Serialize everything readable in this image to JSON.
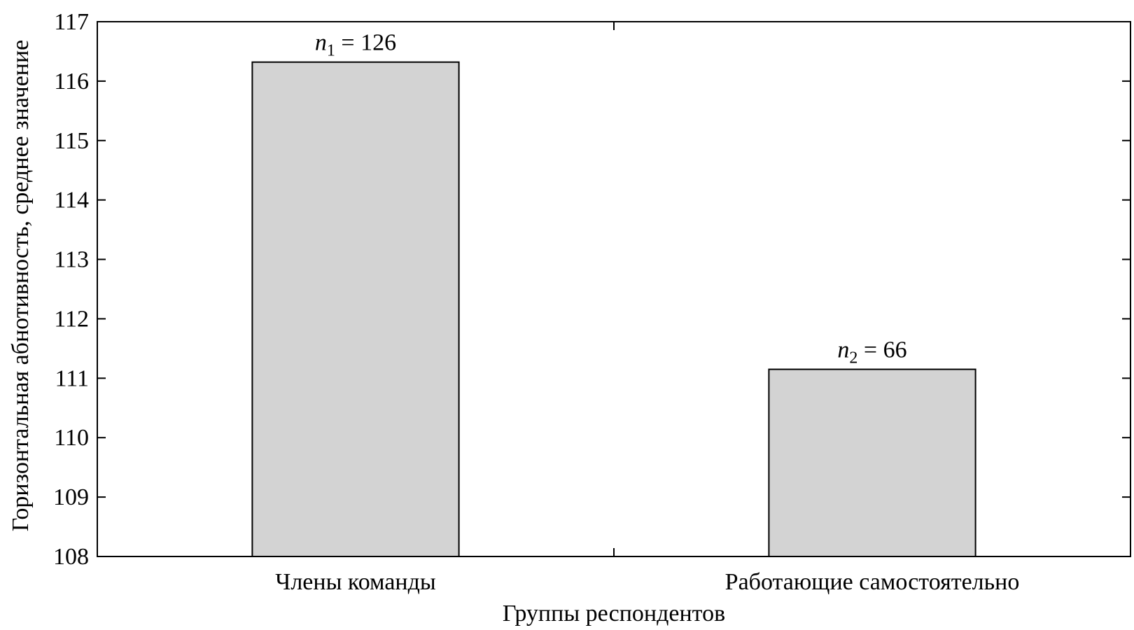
{
  "chart_data": {
    "type": "bar",
    "title": "",
    "xlabel": "Группы респондентов",
    "ylabel": "Горизонтальная абнотивность, среднее значение",
    "categories": [
      "Члены команды",
      "Работающие самостоятельно"
    ],
    "values": [
      116.32,
      111.15
    ],
    "ylim": [
      108,
      117
    ],
    "yticks": [
      108,
      109,
      110,
      111,
      112,
      113,
      114,
      115,
      116,
      117
    ],
    "grid": false,
    "legend": "none",
    "bar_color": "#d3d3d3",
    "bar_edge_color": "#000000",
    "bar_labels": [
      {
        "symbol": "n",
        "sub": "1",
        "eq": " = ",
        "value": "126"
      },
      {
        "symbol": "n",
        "sub": "2",
        "eq": " = ",
        "value": "66"
      }
    ]
  }
}
